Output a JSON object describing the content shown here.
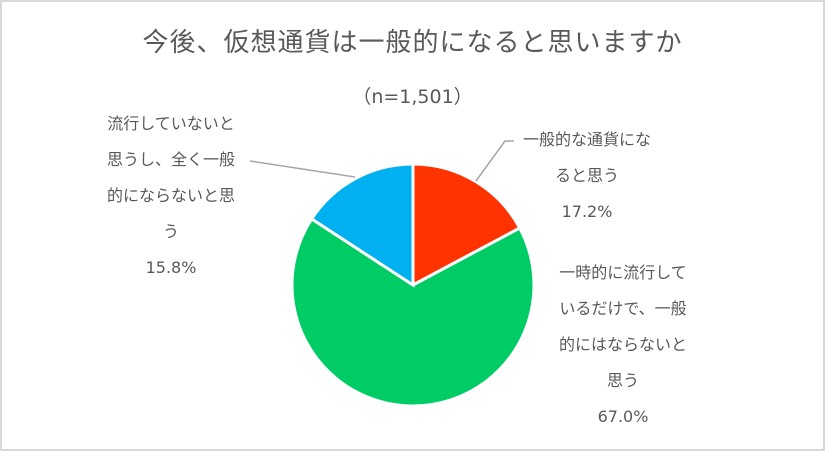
{
  "chart": {
    "title": "今後、仮想通貨は一般的になると思いますか",
    "subtitle": "（n=1,501）"
  },
  "labels": {
    "general": {
      "line1": "一般的な通貨にな",
      "line2": "ると思う",
      "pct": "17.2%"
    },
    "temporary": {
      "line1": "一時的に流行して",
      "line2": "いるだけで、一般",
      "line3": "的にはならないと",
      "line4": "思う",
      "pct": "67.0%"
    },
    "not_trending": {
      "line1": "流行していないと",
      "line2": "思うし、全く一般",
      "line3": "的にならないと思",
      "line4": "う",
      "pct": "15.8%"
    }
  },
  "chart_data": {
    "type": "pie",
    "title": "今後、仮想通貨は一般的になると思いますか",
    "subtitle": "（n=1,501）",
    "categories": [
      "一般的な通貨になると思う",
      "一時的に流行しているだけで、一般的にはならないと思う",
      "流行していないと思うし、全く一般的にならないと思う"
    ],
    "values": [
      17.2,
      67.0,
      15.8
    ],
    "colors": [
      "#ff3300",
      "#00cc66",
      "#00b0f0"
    ],
    "unit": "%",
    "start_angle": "12 o'clock, clockwise",
    "legend": "none (data labels with leader lines)"
  }
}
